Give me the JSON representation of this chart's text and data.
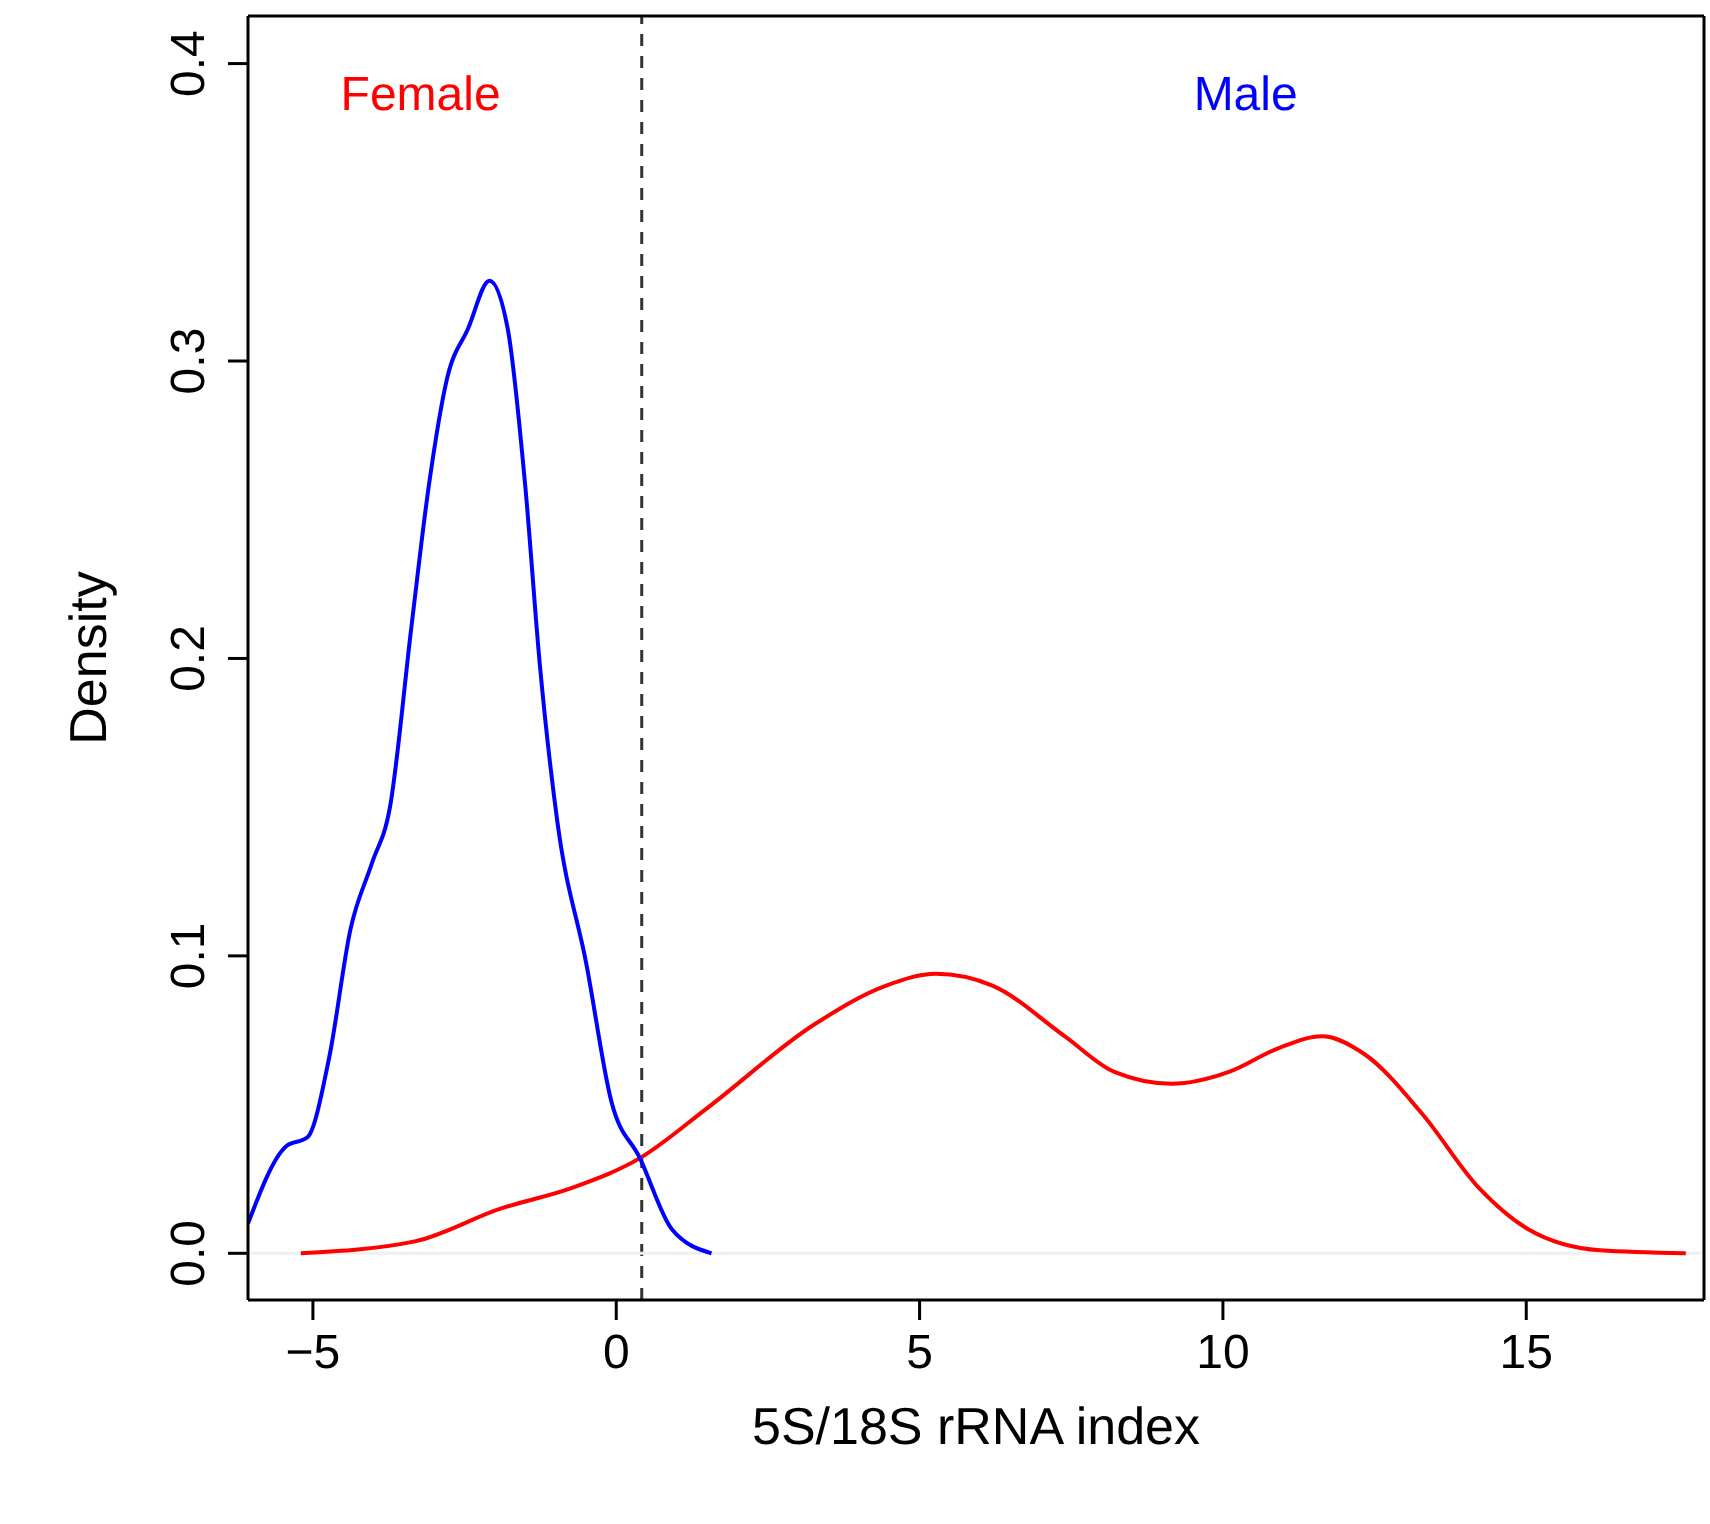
{
  "chart_data": {
    "type": "line",
    "xlabel": "5S/18S rRNA index",
    "ylabel": "Density",
    "xlim": [
      -6.07,
      17.93
    ],
    "xticks": [
      {
        "value": -5,
        "label": "−5"
      },
      0,
      5,
      10,
      15
    ],
    "ylim": [
      -0.0157,
      0.416
    ],
    "yticks": [
      {
        "value": 0,
        "label": "0.0"
      },
      0.1,
      0.2,
      0.3,
      0.4
    ],
    "marker": "none",
    "line_style": "solid",
    "series": [
      {
        "color": "#ff0000",
        "x": [
          -5.2,
          -3.32,
          -1.91,
          -0.73,
          0.39,
          1.51,
          3.27,
          4.45,
          5.27,
          6.2,
          7.39,
          8.21,
          9.16,
          10.1,
          10.92,
          11.63,
          12.33,
          13.28,
          14.22,
          15.04,
          16.22,
          17.63
        ],
        "values": [
          0,
          0.004,
          0.015,
          0.022,
          0.032,
          0.049,
          0.077,
          0.09,
          0.094,
          0.09,
          0.073,
          0.061,
          0.057,
          0.061,
          0.069,
          0.073,
          0.067,
          0.047,
          0.022,
          0.008,
          0.001,
          0
        ]
      },
      {
        "color": "#0000ff",
        "x": [
          -6.07,
          -5.44,
          -5.09,
          -4.73,
          -4.38,
          -4.03,
          -3.73,
          -3.38,
          -3.09,
          -2.79,
          -2.44,
          -2.09,
          -1.79,
          -1.5,
          -1.26,
          -0.97,
          -0.49,
          -0.08,
          0.39,
          0.92,
          1.57
        ],
        "values": [
          0.01,
          0.036,
          0.039,
          0.066,
          0.109,
          0.131,
          0.15,
          0.21,
          0.258,
          0.294,
          0.311,
          0.327,
          0.311,
          0.258,
          0.198,
          0.145,
          0.097,
          0.051,
          0.032,
          0.008,
          0
        ]
      }
    ],
    "ref_lines": [
      {
        "axis": "x",
        "value": 0.42,
        "line_style": "dashed",
        "color": "#333333"
      },
      {
        "axis": "y",
        "value": 0,
        "line_style": "solid",
        "color": "#f0f0f0"
      }
    ],
    "annotations": [
      "Female",
      "Male"
    ]
  }
}
